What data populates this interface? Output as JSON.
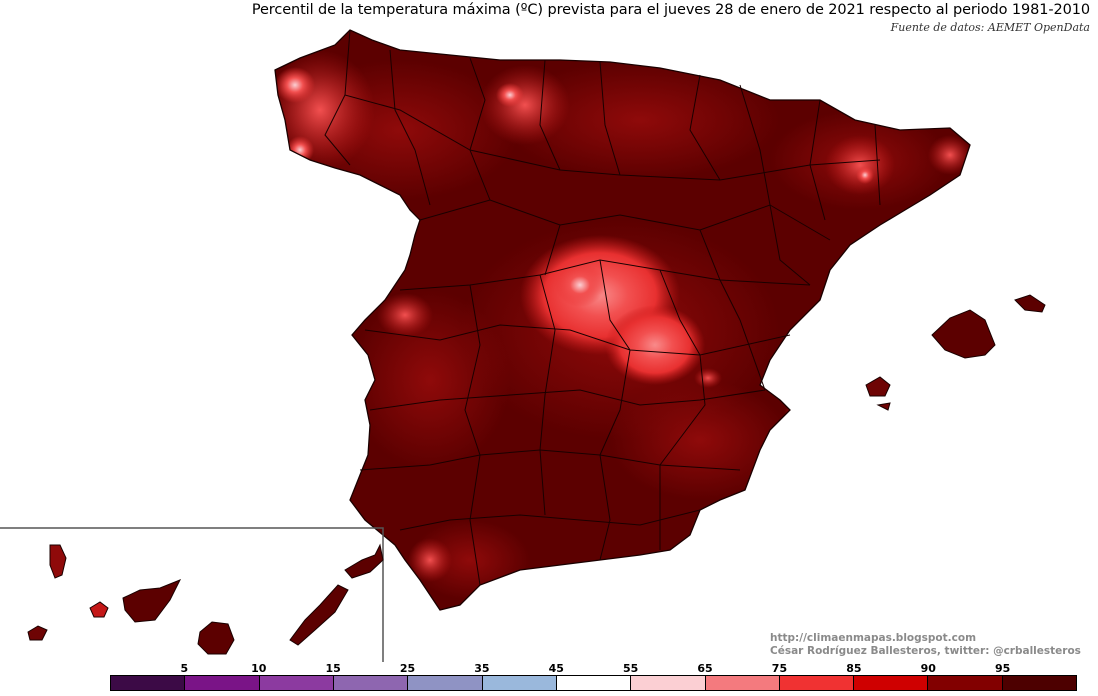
{
  "header": {
    "title": "Percentil de la temperatura máxima (ºC) prevista para el jueves 28 de enero de 2021 respecto al periodo 1981-2010",
    "source": "Fuente de datos: AEMET OpenData"
  },
  "credits": {
    "url": "http://climaenmapas.blogspot.com",
    "author": "César Rodríguez Ballesteros, twitter: @crballesteros"
  },
  "legend": {
    "ticks": [
      "5",
      "10",
      "15",
      "25",
      "35",
      "45",
      "55",
      "65",
      "75",
      "85",
      "90",
      "95"
    ],
    "colors": [
      "#3c0a46",
      "#7a1487",
      "#8c3aa0",
      "#8e66b0",
      "#8f93c4",
      "#9ab8dc",
      "#ffffff",
      "#fbcfd3",
      "#f47a7e",
      "#f03232",
      "#cf0000",
      "#820000",
      "#4d0000"
    ]
  },
  "map": {
    "colors": {
      "base": "#5c0000",
      "dark": "#6e0404",
      "mid": "#8f0a0a",
      "high": "#c41818",
      "hot": "#e83030",
      "hotter": "#f25050",
      "hottest": "#f98a8a",
      "border": "#1a0000"
    }
  }
}
